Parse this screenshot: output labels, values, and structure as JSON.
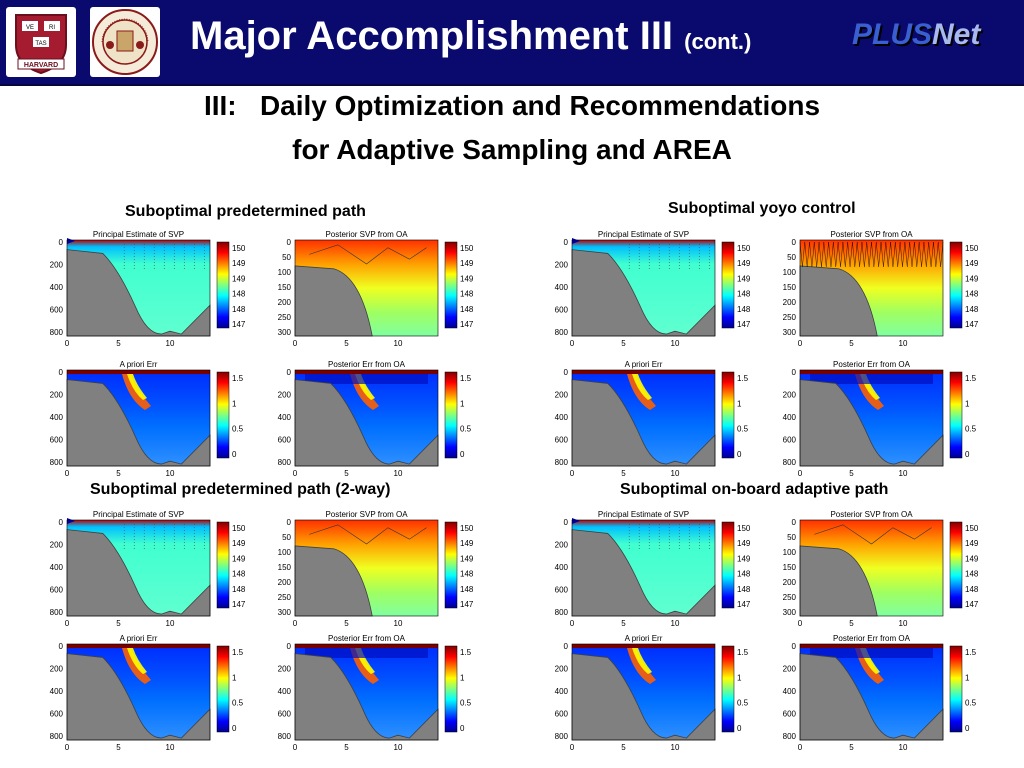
{
  "header": {
    "title": "Major Accomplishment III",
    "title_suffix": "(cont.)",
    "brand_plus": "PLUS",
    "brand_net": "Net",
    "logos": [
      {
        "name": "harvard-logo",
        "text": "HARVARD"
      },
      {
        "name": "mit-logo",
        "text": "MASSACHUSETTS INSTITUTE OF TECHNOLOGY"
      }
    ]
  },
  "subtitle": {
    "line1": "III:   Daily Optimization and Recommendations",
    "line2": "for Adaptive Sampling and AREA"
  },
  "panels": [
    {
      "label": "Suboptimal predetermined path",
      "variant": "predetermined"
    },
    {
      "label": "Suboptimal yoyo control",
      "variant": "yoyo"
    },
    {
      "label": "Suboptimal predetermined path (2-way)",
      "variant": "twoway"
    },
    {
      "label": "Suboptimal on-board adaptive path",
      "variant": "adaptive"
    }
  ],
  "subplots": {
    "principal": {
      "title": "Principal Estimate of SVP",
      "yticks": [
        "0",
        "200",
        "400",
        "600",
        "800"
      ],
      "xticks": [
        "0",
        "5",
        "10"
      ],
      "cbar": [
        "1500",
        "1495",
        "1490",
        "1485",
        "1480",
        "1475"
      ]
    },
    "posterior_svp": {
      "title": "Posterior SVP from OA",
      "yticks": [
        "0",
        "50",
        "100",
        "150",
        "200",
        "250",
        "300"
      ],
      "xticks": [
        "0",
        "5",
        "10"
      ],
      "cbar": [
        "1500",
        "1495",
        "1490",
        "1485",
        "1480",
        "1475"
      ]
    },
    "apriori_err": {
      "title": "A priori Err",
      "yticks": [
        "0",
        "200",
        "400",
        "600",
        "800"
      ],
      "xticks": [
        "0",
        "5",
        "10"
      ],
      "cbar": [
        "1.5",
        "1",
        "0.5",
        "0"
      ]
    },
    "posterior_err": {
      "title": "Posterior Err from OA",
      "yticks": [
        "0",
        "200",
        "400",
        "600",
        "800"
      ],
      "xticks": [
        "0",
        "5",
        "10"
      ],
      "cbar": [
        "1.5",
        "1",
        "0.5",
        "0"
      ]
    }
  },
  "colors": {
    "header_bg": "#0a0a6e",
    "seafloor": "#808080",
    "colormap": "jet"
  }
}
